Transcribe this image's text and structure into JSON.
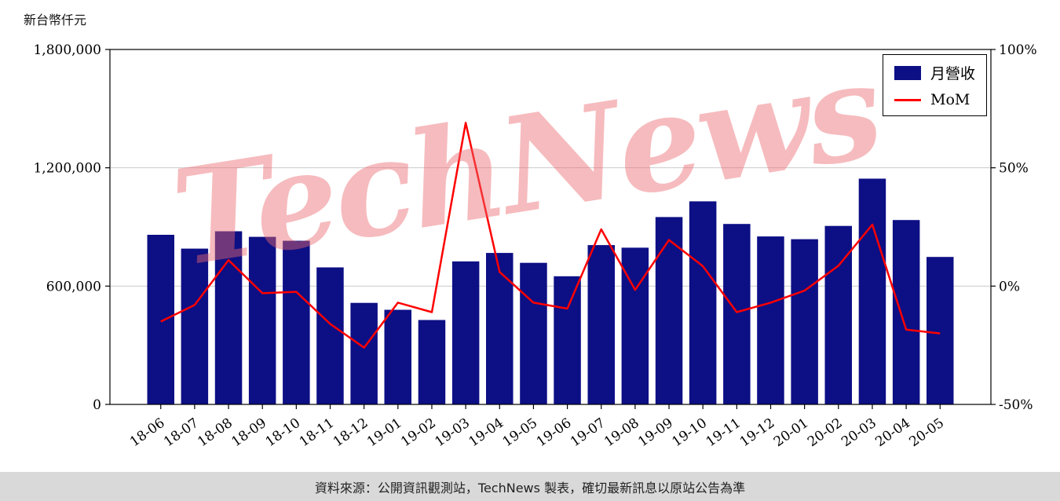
{
  "unit_label": "新台幣仟元",
  "watermark": "TechNews",
  "caption": "資料來源：公開資訊觀測站，TechNews 製表，確切最新訊息以原站公告為準",
  "legend": {
    "bar_label": "月營收",
    "line_label": "MoM"
  },
  "colors": {
    "bar": "#0d0f85",
    "line": "#ff0000",
    "grid": "#cccccc",
    "axis": "#000000",
    "caption_bg": "#d9d9d9",
    "watermark": "#eb6970"
  },
  "chart_data": {
    "type": "bar",
    "title": "",
    "xlabel": "",
    "ylabel": "新台幣仟元",
    "categories": [
      "18-06",
      "18-07",
      "18-08",
      "18-09",
      "18-10",
      "18-11",
      "18-12",
      "19-01",
      "19-02",
      "19-03",
      "19-04",
      "19-05",
      "19-06",
      "19-07",
      "19-08",
      "19-09",
      "19-10",
      "19-11",
      "19-12",
      "20-01",
      "20-02",
      "20-03",
      "20-04",
      "20-05"
    ],
    "series": [
      {
        "name": "月營收",
        "type": "bar",
        "axis": "left",
        "values": [
          860000,
          790000,
          878000,
          850000,
          830000,
          695000,
          515000,
          480000,
          428000,
          725000,
          768000,
          718000,
          650000,
          808000,
          795000,
          950000,
          1030000,
          915000,
          852000,
          838000,
          905000,
          1145000,
          935000,
          748000
        ]
      },
      {
        "name": "MoM",
        "type": "line",
        "axis": "right",
        "values": [
          -15,
          -8,
          11,
          -3,
          -2.4,
          -16,
          -26,
          -7,
          -11,
          69,
          6,
          -7,
          -9.5,
          24,
          -1.6,
          19.5,
          8.4,
          -11,
          -7,
          -1.9,
          8.6,
          26,
          -18.4,
          -20
        ]
      }
    ],
    "left_axis": {
      "range": [
        0,
        1800000
      ],
      "ticks": [
        0,
        600000,
        1200000,
        1800000
      ]
    },
    "right_axis": {
      "range": [
        -50,
        100
      ],
      "ticks": [
        -50,
        0,
        50,
        100
      ],
      "format": "percent"
    },
    "grid": "horizontal",
    "legend_position": "top-right"
  }
}
